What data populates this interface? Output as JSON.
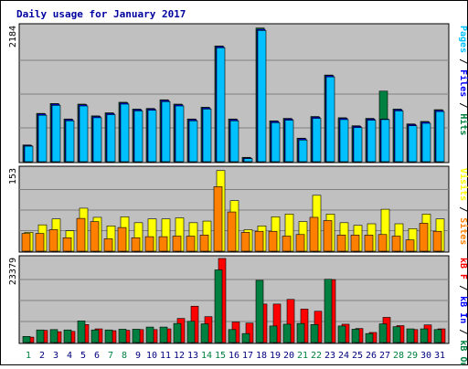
{
  "title": "Daily usage for January 2017",
  "days": [
    "1",
    "2",
    "3",
    "4",
    "5",
    "6",
    "7",
    "8",
    "9",
    "10",
    "11",
    "12",
    "13",
    "14",
    "15",
    "16",
    "17",
    "18",
    "19",
    "20",
    "21",
    "22",
    "23",
    "24",
    "25",
    "26",
    "27",
    "28",
    "29",
    "30",
    "31"
  ],
  "weekend_days": [
    1,
    7,
    8,
    14,
    15,
    21,
    22,
    28,
    29
  ],
  "colors": {
    "background": "#c0c0c0",
    "hits": "#008040",
    "files": "#0000ff",
    "pages": "#00c0ff",
    "visits": "#ffff00",
    "sites": "#ff8000",
    "kbin": "#0000ff",
    "kbout": "#008040",
    "kbf": "#ff0000",
    "weekday_label": "#000080",
    "weekend_label": "#008040"
  },
  "right_labels": {
    "top": [
      {
        "text": "Pages",
        "color": "#00c0ff"
      },
      {
        "text": " / ",
        "color": "#000000"
      },
      {
        "text": "Files",
        "color": "#0000ff"
      },
      {
        "text": " / ",
        "color": "#000000"
      },
      {
        "text": "Hits",
        "color": "#008040"
      }
    ],
    "middle": [
      {
        "text": "Visits",
        "color": "#ffff00"
      },
      {
        "text": " / ",
        "color": "#000000"
      },
      {
        "text": "Sites",
        "color": "#ff8000"
      }
    ],
    "bottom": [
      {
        "text": "kB F",
        "color": "#ff0000"
      },
      {
        "text": " / ",
        "color": "#000000"
      },
      {
        "text": "kB In",
        "color": "#0000ff"
      },
      {
        "text": " / ",
        "color": "#000000"
      },
      {
        "text": "kB Out",
        "color": "#008040"
      }
    ]
  },
  "chart_data": [
    {
      "type": "bar",
      "ymax_label": "2184",
      "ylim": [
        0,
        2184
      ],
      "categories": [
        "1",
        "2",
        "3",
        "4",
        "5",
        "6",
        "7",
        "8",
        "9",
        "10",
        "11",
        "12",
        "13",
        "14",
        "15",
        "16",
        "17",
        "18",
        "19",
        "20",
        "21",
        "22",
        "23",
        "24",
        "25",
        "26",
        "27",
        "28",
        "29",
        "30",
        "31"
      ],
      "series": [
        {
          "name": "Hits",
          "values": [
            270,
            780,
            940,
            690,
            930,
            740,
            790,
            960,
            850,
            860,
            1000,
            930,
            690,
            880,
            1870,
            690,
            70,
            2160,
            660,
            700,
            380,
            730,
            1400,
            710,
            580,
            700,
            1140,
            850,
            610,
            650,
            840
          ]
        },
        {
          "name": "Files",
          "values": [
            260,
            770,
            930,
            680,
            920,
            730,
            780,
            950,
            840,
            850,
            990,
            920,
            680,
            870,
            1860,
            680,
            60,
            2140,
            650,
            690,
            370,
            720,
            1390,
            700,
            570,
            690,
            690,
            840,
            600,
            640,
            830
          ]
        },
        {
          "name": "Pages",
          "values": [
            250,
            750,
            910,
            660,
            900,
            710,
            760,
            930,
            820,
            830,
            970,
            900,
            660,
            850,
            1840,
            660,
            50,
            2120,
            630,
            670,
            350,
            700,
            1370,
            680,
            550,
            670,
            680,
            820,
            580,
            620,
            810
          ]
        }
      ]
    },
    {
      "type": "bar",
      "ymax_label": "153",
      "ylim": [
        0,
        153
      ],
      "categories": [
        "1",
        "2",
        "3",
        "4",
        "5",
        "6",
        "7",
        "8",
        "9",
        "10",
        "11",
        "12",
        "13",
        "14",
        "15",
        "16",
        "17",
        "18",
        "19",
        "20",
        "21",
        "22",
        "23",
        "24",
        "25",
        "26",
        "27",
        "28",
        "29",
        "30",
        "31"
      ],
      "series": [
        {
          "name": "Visits",
          "values": [
            35,
            49,
            60,
            38,
            80,
            63,
            47,
            64,
            53,
            60,
            60,
            62,
            53,
            56,
            150,
            94,
            40,
            47,
            64,
            69,
            55,
            104,
            69,
            53,
            48,
            51,
            78,
            51,
            42,
            69,
            60
          ]
        },
        {
          "name": "Sites",
          "values": [
            33,
            33,
            40,
            25,
            61,
            55,
            23,
            44,
            25,
            27,
            27,
            28,
            28,
            30,
            120,
            73,
            35,
            37,
            37,
            28,
            31,
            63,
            57,
            30,
            30,
            30,
            31,
            28,
            21,
            52,
            37
          ]
        }
      ]
    },
    {
      "type": "bar",
      "ymax_label": "23379",
      "ylim": [
        0,
        23379
      ],
      "categories": [
        "1",
        "2",
        "3",
        "4",
        "5",
        "6",
        "7",
        "8",
        "9",
        "10",
        "11",
        "12",
        "13",
        "14",
        "15",
        "16",
        "17",
        "18",
        "19",
        "20",
        "21",
        "22",
        "23",
        "24",
        "25",
        "26",
        "27",
        "28",
        "29",
        "30",
        "31"
      ],
      "series": [
        {
          "name": "kB F",
          "values": [
            1500,
            3400,
            3000,
            3100,
            5000,
            3800,
            3300,
            3400,
            3600,
            3600,
            3800,
            6700,
            10100,
            7200,
            23379,
            5700,
            5400,
            10700,
            10700,
            12000,
            9300,
            8700,
            17500,
            5100,
            3900,
            2800,
            7000,
            4700,
            3600,
            4900,
            3800
          ]
        },
        {
          "name": "kB In",
          "values": [
            0,
            0,
            0,
            0,
            0,
            0,
            0,
            0,
            0,
            0,
            0,
            0,
            0,
            0,
            0,
            0,
            0,
            0,
            0,
            0,
            0,
            0,
            0,
            0,
            0,
            0,
            0,
            0,
            0,
            0,
            0
          ]
        },
        {
          "name": "kB Out",
          "values": [
            1700,
            3500,
            3600,
            3500,
            6000,
            3500,
            3500,
            3700,
            3700,
            4300,
            4300,
            5300,
            5900,
            5200,
            20200,
            3600,
            2500,
            17300,
            4600,
            5100,
            5300,
            5000,
            17600,
            4600,
            3700,
            2500,
            5200,
            4400,
            3800,
            3800,
            3600
          ]
        }
      ]
    }
  ]
}
